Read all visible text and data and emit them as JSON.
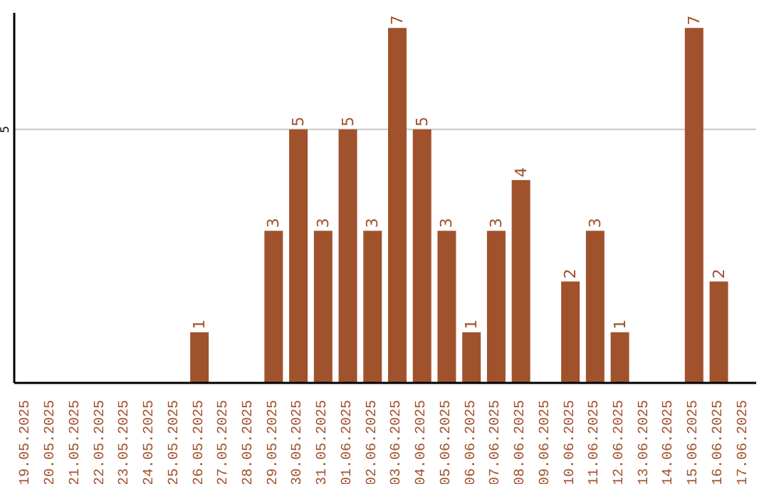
{
  "chart_data": {
    "type": "bar",
    "categories": [
      "19.05.2025",
      "20.05.2025",
      "21.05.2025",
      "22.05.2025",
      "23.05.2025",
      "24.05.2025",
      "25.05.2025",
      "26.05.2025",
      "27.05.2025",
      "28.05.2025",
      "29.05.2025",
      "30.05.2025",
      "31.05.2025",
      "01.06.2025",
      "02.06.2025",
      "03.06.2025",
      "04.06.2025",
      "05.06.2025",
      "06.06.2025",
      "07.06.2025",
      "08.06.2025",
      "09.06.2025",
      "10.06.2025",
      "11.06.2025",
      "12.06.2025",
      "13.06.2025",
      "14.06.2025",
      "15.06.2025",
      "16.06.2025",
      "17.06.2025"
    ],
    "values": [
      0,
      0,
      0,
      0,
      0,
      0,
      0,
      1,
      0,
      0,
      3,
      5,
      3,
      5,
      3,
      7,
      5,
      3,
      1,
      3,
      4,
      0,
      2,
      3,
      1,
      0,
      0,
      7,
      2,
      0
    ],
    "value_labels": [
      null,
      null,
      null,
      null,
      null,
      null,
      null,
      "1",
      null,
      null,
      "3",
      "5",
      "3",
      "5",
      "3",
      "7",
      "5",
      "3",
      "1",
      "3",
      "4",
      null,
      "2",
      "3",
      "1",
      null,
      null,
      "7",
      "2",
      null
    ],
    "color": "#a0522d",
    "ylim": [
      0,
      7.3
    ],
    "yticks": [
      5
    ],
    "grid": "y"
  }
}
